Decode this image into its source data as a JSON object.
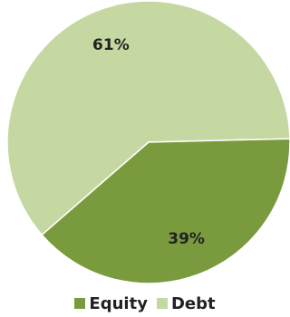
{
  "chart_data": {
    "type": "pie",
    "title": "",
    "start_angle_deg": 221,
    "slices": [
      {
        "label": "Debt",
        "value": 61,
        "value_label": "61%",
        "color": "#c6d8a2"
      },
      {
        "label": "Equity",
        "value": 39,
        "value_label": "39%",
        "color": "#7a9a3e"
      }
    ],
    "legend": {
      "placement": "bottom",
      "order": [
        "Equity",
        "Debt"
      ]
    }
  }
}
